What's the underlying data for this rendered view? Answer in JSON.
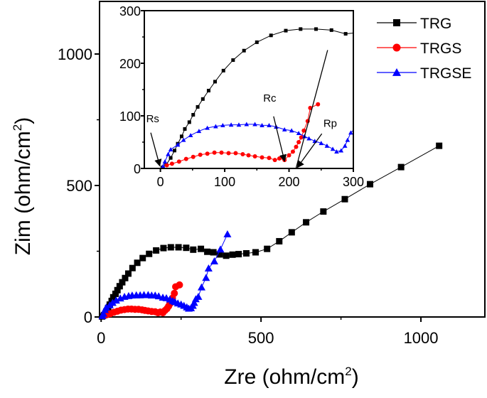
{
  "chart_data": [
    {
      "id": "main",
      "type": "line",
      "xlabel": "Zre (ohm/cm",
      "xlabel_sup": "2",
      "xlabel_end": ")",
      "ylabel": "Zim (ohm/cm",
      "ylabel_sup": "2",
      "ylabel_end": ")",
      "xlim": [
        -5,
        1200
      ],
      "ylim": [
        0,
        1200
      ],
      "xticks": [
        0,
        500,
        1000
      ],
      "yticks": [
        0,
        500,
        1000
      ],
      "xtick_labels": [
        "0",
        "500",
        "1000"
      ],
      "ytick_labels": [
        "0",
        "500",
        "1000"
      ],
      "grid": false,
      "legend_position": "top-right",
      "series": [
        {
          "name": "TRG",
          "color": "#000000",
          "marker": "square",
          "x": [
            3,
            9,
            16,
            22,
            27,
            33,
            38,
            45,
            51,
            58,
            66,
            75,
            85,
            98,
            113,
            130,
            150,
            172,
            195,
            218,
            242,
            266,
            288,
            312,
            332,
            351,
            371,
            391,
            411,
            430,
            454,
            483,
            519,
            557,
            596,
            641,
            695,
            762,
            841,
            938,
            1057
          ],
          "y": [
            2,
            7,
            20,
            34,
            47,
            61,
            75,
            88,
            102,
            117,
            132,
            148,
            165,
            186,
            206,
            224,
            240,
            253,
            262,
            265,
            265,
            263,
            256,
            259,
            248,
            246,
            238,
            233,
            237,
            239,
            242,
            246,
            259,
            288,
            322,
            360,
            401,
            448,
            505,
            570,
            651
          ]
        },
        {
          "name": "TRGS",
          "color": "#ff0000",
          "marker": "circle",
          "x": [
            10,
            18,
            29,
            40,
            51,
            62,
            73,
            84,
            95,
            106,
            117,
            128,
            137,
            147,
            158,
            169,
            178,
            185,
            193,
            200,
            206,
            211,
            215,
            219,
            223,
            229,
            233,
            245
          ],
          "y": [
            6,
            9,
            13,
            18,
            22,
            26,
            28,
            30,
            30,
            29,
            29,
            27,
            25,
            23,
            21,
            20,
            16,
            19,
            16,
            25,
            32,
            41,
            50,
            59,
            72,
            90,
            115,
            122
          ]
        },
        {
          "name": "TRGSE",
          "color": "#0000ff",
          "marker": "triangle",
          "x": [
            4,
            7,
            12,
            16,
            27,
            36,
            47,
            60,
            73,
            86,
            97,
            110,
            122,
            134,
            147,
            158,
            169,
            180,
            193,
            204,
            215,
            224,
            231,
            240,
            250,
            259,
            268,
            274,
            281,
            287,
            291,
            296,
            304,
            314,
            328,
            336,
            354,
            373,
            395
          ],
          "y": [
            4,
            13,
            27,
            36,
            45,
            54,
            63,
            71,
            77,
            80,
            82,
            83,
            83,
            84,
            84,
            82,
            82,
            79,
            74,
            72,
            67,
            61,
            57,
            52,
            48,
            43,
            37,
            32,
            34,
            43,
            54,
            68,
            77,
            113,
            149,
            185,
            212,
            257,
            315
          ]
        }
      ]
    },
    {
      "id": "inset",
      "type": "line",
      "xlim": [
        -25,
        300
      ],
      "ylim": [
        0,
        300
      ],
      "xticks": [
        0,
        100,
        200,
        300
      ],
      "yticks": [
        0,
        100,
        200,
        300
      ],
      "xtick_labels": [
        "0",
        "100",
        "200",
        "300"
      ],
      "ytick_labels": [
        "0",
        "100",
        "200",
        "300"
      ],
      "annotations": [
        "Rs",
        "Rc",
        "Rp"
      ],
      "note": "inset shows the same three series zoomed into the high-frequency region"
    }
  ]
}
